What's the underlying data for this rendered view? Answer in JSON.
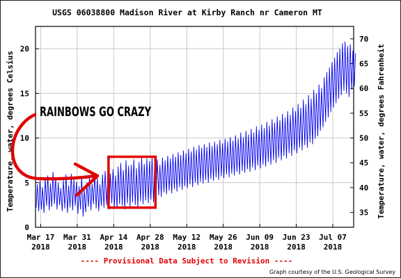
{
  "chart_data": {
    "type": "line",
    "title": "USGS 06038800 Madison River at Kirby Ranch nr Cameron MT",
    "ylabel": "Temperature, water, degrees Celsius",
    "ylabel_right": "Temperature, water, degrees Fahrenheit",
    "xlabel": "",
    "ylim": [
      0,
      22.5
    ],
    "ylim_right": [
      32,
      72.5
    ],
    "xlim": [
      "2018-03-15",
      "2018-07-15"
    ],
    "grid": true,
    "line_color": "#0000ee",
    "x_ticks": [
      {
        "date": "2018-03-17",
        "label": "Mar 17",
        "year": "2018"
      },
      {
        "date": "2018-03-31",
        "label": "Mar 31",
        "year": "2018"
      },
      {
        "date": "2018-04-14",
        "label": "Apr 14",
        "year": "2018"
      },
      {
        "date": "2018-04-28",
        "label": "Apr 28",
        "year": "2018"
      },
      {
        "date": "2018-05-12",
        "label": "May 12",
        "year": "2018"
      },
      {
        "date": "2018-05-26",
        "label": "May 26",
        "year": "2018"
      },
      {
        "date": "2018-06-09",
        "label": "Jun 09",
        "year": "2018"
      },
      {
        "date": "2018-06-23",
        "label": "Jun 23",
        "year": "2018"
      },
      {
        "date": "2018-07-07",
        "label": "Jul 07",
        "year": "2018"
      }
    ],
    "y_ticks_left": [
      0,
      5,
      10,
      15,
      20
    ],
    "y_ticks_right": [
      35,
      40,
      45,
      50,
      55,
      60,
      65,
      70
    ],
    "series": [
      {
        "name": "",
        "daily": [
          {
            "date": "2018-03-15",
            "min": 2.2,
            "max": 4.8
          },
          {
            "date": "2018-03-16",
            "min": 1.8,
            "max": 5.2
          },
          {
            "date": "2018-03-17",
            "min": 2.0,
            "max": 4.5
          },
          {
            "date": "2018-03-18",
            "min": 1.6,
            "max": 5.5
          },
          {
            "date": "2018-03-19",
            "min": 2.4,
            "max": 5.8
          },
          {
            "date": "2018-03-20",
            "min": 1.9,
            "max": 4.9
          },
          {
            "date": "2018-03-21",
            "min": 2.3,
            "max": 6.2
          },
          {
            "date": "2018-03-22",
            "min": 2.6,
            "max": 5.6
          },
          {
            "date": "2018-03-23",
            "min": 2.0,
            "max": 5.0
          },
          {
            "date": "2018-03-24",
            "min": 2.5,
            "max": 4.4
          },
          {
            "date": "2018-03-25",
            "min": 1.8,
            "max": 5.3
          },
          {
            "date": "2018-03-26",
            "min": 2.1,
            "max": 5.9
          },
          {
            "date": "2018-03-27",
            "min": 1.6,
            "max": 4.7
          },
          {
            "date": "2018-03-28",
            "min": 2.2,
            "max": 6.0
          },
          {
            "date": "2018-03-29",
            "min": 1.9,
            "max": 5.4
          },
          {
            "date": "2018-03-30",
            "min": 2.4,
            "max": 5.1
          },
          {
            "date": "2018-03-31",
            "min": 1.5,
            "max": 4.6
          },
          {
            "date": "2018-04-01",
            "min": 2.0,
            "max": 5.7
          },
          {
            "date": "2018-04-02",
            "min": 1.2,
            "max": 4.2
          },
          {
            "date": "2018-04-03",
            "min": 1.7,
            "max": 5.0
          },
          {
            "date": "2018-04-04",
            "min": 2.3,
            "max": 5.8
          },
          {
            "date": "2018-04-05",
            "min": 1.9,
            "max": 4.9
          },
          {
            "date": "2018-04-06",
            "min": 2.6,
            "max": 6.1
          },
          {
            "date": "2018-04-07",
            "min": 2.1,
            "max": 5.5
          },
          {
            "date": "2018-04-08",
            "min": 1.8,
            "max": 4.8
          },
          {
            "date": "2018-04-09",
            "min": 2.4,
            "max": 5.9
          },
          {
            "date": "2018-04-10",
            "min": 2.2,
            "max": 6.3
          },
          {
            "date": "2018-04-11",
            "min": 2.5,
            "max": 5.6
          },
          {
            "date": "2018-04-12",
            "min": 2.0,
            "max": 6.0
          },
          {
            "date": "2018-04-13",
            "min": 2.7,
            "max": 6.5
          },
          {
            "date": "2018-04-14",
            "min": 2.3,
            "max": 5.8
          },
          {
            "date": "2018-04-15",
            "min": 2.1,
            "max": 6.8
          },
          {
            "date": "2018-04-16",
            "min": 2.6,
            "max": 7.2
          },
          {
            "date": "2018-04-17",
            "min": 2.4,
            "max": 6.4
          },
          {
            "date": "2018-04-18",
            "min": 2.0,
            "max": 7.5
          },
          {
            "date": "2018-04-19",
            "min": 2.7,
            "max": 6.9
          },
          {
            "date": "2018-04-20",
            "min": 2.3,
            "max": 7.0
          },
          {
            "date": "2018-04-21",
            "min": 2.8,
            "max": 7.6
          },
          {
            "date": "2018-04-22",
            "min": 2.5,
            "max": 6.6
          },
          {
            "date": "2018-04-23",
            "min": 2.2,
            "max": 7.3
          },
          {
            "date": "2018-04-24",
            "min": 2.9,
            "max": 7.8
          },
          {
            "date": "2018-04-25",
            "min": 2.6,
            "max": 7.1
          },
          {
            "date": "2018-04-26",
            "min": 3.0,
            "max": 7.7
          },
          {
            "date": "2018-04-27",
            "min": 2.7,
            "max": 7.4
          },
          {
            "date": "2018-04-28",
            "min": 3.1,
            "max": 7.9
          },
          {
            "date": "2018-04-29",
            "min": 2.8,
            "max": 7.2
          },
          {
            "date": "2018-04-30",
            "min": 3.3,
            "max": 7.6
          },
          {
            "date": "2018-05-01",
            "min": 3.6,
            "max": 7.0
          },
          {
            "date": "2018-05-02",
            "min": 3.4,
            "max": 7.8
          },
          {
            "date": "2018-05-03",
            "min": 3.9,
            "max": 7.5
          },
          {
            "date": "2018-05-04",
            "min": 3.7,
            "max": 8.0
          },
          {
            "date": "2018-05-05",
            "min": 4.1,
            "max": 7.7
          },
          {
            "date": "2018-05-06",
            "min": 3.8,
            "max": 8.2
          },
          {
            "date": "2018-05-07",
            "min": 4.3,
            "max": 7.9
          },
          {
            "date": "2018-05-08",
            "min": 4.0,
            "max": 8.4
          },
          {
            "date": "2018-05-09",
            "min": 4.5,
            "max": 8.1
          },
          {
            "date": "2018-05-10",
            "min": 4.2,
            "max": 8.6
          },
          {
            "date": "2018-05-11",
            "min": 4.6,
            "max": 8.3
          },
          {
            "date": "2018-05-12",
            "min": 4.4,
            "max": 8.8
          },
          {
            "date": "2018-05-13",
            "min": 4.8,
            "max": 8.5
          },
          {
            "date": "2018-05-14",
            "min": 4.5,
            "max": 9.0
          },
          {
            "date": "2018-05-15",
            "min": 5.0,
            "max": 8.7
          },
          {
            "date": "2018-05-16",
            "min": 4.7,
            "max": 9.2
          },
          {
            "date": "2018-05-17",
            "min": 5.1,
            "max": 8.9
          },
          {
            "date": "2018-05-18",
            "min": 4.9,
            "max": 9.3
          },
          {
            "date": "2018-05-19",
            "min": 5.3,
            "max": 9.0
          },
          {
            "date": "2018-05-20",
            "min": 5.0,
            "max": 9.5
          },
          {
            "date": "2018-05-21",
            "min": 5.4,
            "max": 9.1
          },
          {
            "date": "2018-05-22",
            "min": 5.2,
            "max": 9.6
          },
          {
            "date": "2018-05-23",
            "min": 5.6,
            "max": 9.3
          },
          {
            "date": "2018-05-24",
            "min": 5.3,
            "max": 9.8
          },
          {
            "date": "2018-05-25",
            "min": 5.7,
            "max": 9.4
          },
          {
            "date": "2018-05-26",
            "min": 5.5,
            "max": 9.9
          },
          {
            "date": "2018-05-27",
            "min": 5.9,
            "max": 9.6
          },
          {
            "date": "2018-05-28",
            "min": 5.6,
            "max": 10.1
          },
          {
            "date": "2018-05-29",
            "min": 6.0,
            "max": 9.7
          },
          {
            "date": "2018-05-30",
            "min": 5.8,
            "max": 10.3
          },
          {
            "date": "2018-05-31",
            "min": 6.2,
            "max": 9.9
          },
          {
            "date": "2018-06-01",
            "min": 5.9,
            "max": 10.6
          },
          {
            "date": "2018-06-02",
            "min": 6.3,
            "max": 10.1
          },
          {
            "date": "2018-06-03",
            "min": 6.1,
            "max": 10.8
          },
          {
            "date": "2018-06-04",
            "min": 6.5,
            "max": 10.4
          },
          {
            "date": "2018-06-05",
            "min": 6.2,
            "max": 11.0
          },
          {
            "date": "2018-06-06",
            "min": 6.7,
            "max": 10.6
          },
          {
            "date": "2018-06-07",
            "min": 6.4,
            "max": 11.3
          },
          {
            "date": "2018-06-08",
            "min": 6.9,
            "max": 10.9
          },
          {
            "date": "2018-06-09",
            "min": 6.6,
            "max": 11.5
          },
          {
            "date": "2018-06-10",
            "min": 7.0,
            "max": 11.1
          },
          {
            "date": "2018-06-11",
            "min": 6.8,
            "max": 11.8
          },
          {
            "date": "2018-06-12",
            "min": 7.3,
            "max": 11.4
          },
          {
            "date": "2018-06-13",
            "min": 7.0,
            "max": 12.1
          },
          {
            "date": "2018-06-14",
            "min": 7.5,
            "max": 11.7
          },
          {
            "date": "2018-06-15",
            "min": 7.2,
            "max": 12.4
          },
          {
            "date": "2018-06-16",
            "min": 7.8,
            "max": 12.0
          },
          {
            "date": "2018-06-17",
            "min": 7.5,
            "max": 12.7
          },
          {
            "date": "2018-06-18",
            "min": 8.0,
            "max": 12.3
          },
          {
            "date": "2018-06-19",
            "min": 7.7,
            "max": 13.0
          },
          {
            "date": "2018-06-20",
            "min": 8.3,
            "max": 12.6
          },
          {
            "date": "2018-06-21",
            "min": 8.0,
            "max": 13.4
          },
          {
            "date": "2018-06-22",
            "min": 8.6,
            "max": 13.0
          },
          {
            "date": "2018-06-23",
            "min": 8.3,
            "max": 13.8
          },
          {
            "date": "2018-06-24",
            "min": 8.9,
            "max": 13.4
          },
          {
            "date": "2018-06-25",
            "min": 8.6,
            "max": 14.3
          },
          {
            "date": "2018-06-26",
            "min": 9.2,
            "max": 13.8
          },
          {
            "date": "2018-06-27",
            "min": 8.9,
            "max": 14.8
          },
          {
            "date": "2018-06-28",
            "min": 9.5,
            "max": 14.4
          },
          {
            "date": "2018-06-29",
            "min": 9.3,
            "max": 15.4
          },
          {
            "date": "2018-06-30",
            "min": 9.9,
            "max": 15.0
          },
          {
            "date": "2018-07-01",
            "min": 10.2,
            "max": 16.0
          },
          {
            "date": "2018-07-02",
            "min": 10.8,
            "max": 15.6
          },
          {
            "date": "2018-07-03",
            "min": 11.2,
            "max": 16.8
          },
          {
            "date": "2018-07-04",
            "min": 11.8,
            "max": 17.4
          },
          {
            "date": "2018-07-05",
            "min": 12.3,
            "max": 17.9
          },
          {
            "date": "2018-07-06",
            "min": 12.9,
            "max": 18.5
          },
          {
            "date": "2018-07-07",
            "min": 13.4,
            "max": 19.0
          },
          {
            "date": "2018-07-08",
            "min": 13.9,
            "max": 19.6
          },
          {
            "date": "2018-07-09",
            "min": 14.4,
            "max": 20.0
          },
          {
            "date": "2018-07-10",
            "min": 14.8,
            "max": 20.6
          },
          {
            "date": "2018-07-11",
            "min": 15.3,
            "max": 20.8
          },
          {
            "date": "2018-07-12",
            "min": 15.0,
            "max": 20.3
          },
          {
            "date": "2018-07-13",
            "min": 14.6,
            "max": 20.5
          },
          {
            "date": "2018-07-14",
            "min": 15.4,
            "max": 19.8
          },
          {
            "date": "2018-07-15",
            "min": 15.8,
            "max": 19.5
          }
        ]
      }
    ]
  },
  "footer": {
    "provisional": "---- Provisional Data Subject to Revision ----",
    "credit": "Graph courtesy of the U.S. Geological Survey"
  },
  "annotation": {
    "text": "RAINBOWS GO CRAZY",
    "color": "#e00000",
    "highlight_start": "2018-04-12",
    "highlight_end": "2018-04-30",
    "highlight_low": 2.2,
    "highlight_high": 7.9
  }
}
